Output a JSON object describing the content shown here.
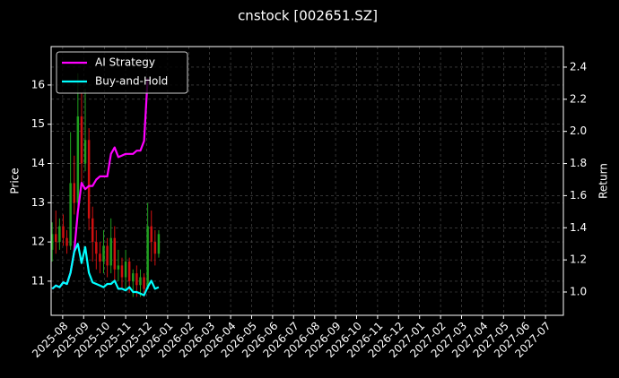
{
  "chart_data": {
    "type": "candlestick",
    "title": "cnstock [002651.SZ]",
    "ylabel": "Price",
    "y2label": "Return",
    "x": [
      -0.5,
      -0.325,
      -0.15,
      0.025,
      0.2,
      0.375,
      0.55,
      0.725,
      0.9,
      1.075,
      1.25,
      1.425,
      1.6,
      1.775,
      1.95,
      2.125,
      2.3,
      2.475,
      2.65,
      2.825,
      3.0,
      3.175,
      3.35,
      3.525,
      3.7,
      3.875,
      4.05,
      4.225,
      4.4,
      4.575
    ],
    "candles": {
      "open": [
        11.8,
        12.2,
        12.0,
        12.4,
        12.1,
        11.9,
        13.5,
        13.0,
        15.2,
        14.0,
        14.6,
        12.6,
        12.0,
        11.7,
        11.5,
        11.9,
        11.4,
        12.1,
        11.3,
        11.4,
        11.1,
        11.5,
        11.0,
        11.2,
        10.9,
        11.1,
        10.8,
        12.4,
        12.0,
        11.7
      ],
      "close": [
        12.2,
        12.0,
        12.4,
        12.1,
        11.9,
        13.5,
        13.0,
        15.2,
        14.0,
        14.6,
        12.6,
        12.0,
        11.7,
        11.5,
        11.9,
        11.4,
        12.1,
        11.3,
        11.4,
        11.1,
        11.5,
        11.0,
        11.2,
        10.9,
        11.1,
        10.8,
        12.4,
        12.0,
        11.7,
        12.2
      ],
      "high": [
        12.5,
        12.8,
        12.6,
        12.7,
        12.3,
        14.8,
        14.2,
        16.3,
        15.8,
        15.9,
        14.9,
        12.9,
        12.3,
        12.0,
        12.3,
        12.1,
        12.6,
        12.4,
        11.8,
        11.6,
        11.8,
        11.6,
        11.3,
        11.4,
        11.3,
        11.2,
        13.0,
        12.8,
        12.3,
        12.3
      ],
      "low": [
        11.5,
        11.7,
        11.8,
        11.9,
        11.7,
        11.8,
        12.7,
        12.9,
        13.5,
        13.8,
        12.3,
        11.5,
        11.3,
        11.2,
        11.2,
        11.1,
        11.2,
        11.0,
        11.0,
        10.8,
        10.8,
        10.7,
        10.6,
        10.6,
        10.6,
        10.6,
        10.8,
        11.5,
        11.4,
        11.6
      ],
      "up_color": "#1fa01f",
      "down_color": "#d01010"
    },
    "series": [
      {
        "name": "AI Strategy",
        "color": "#ff00ff",
        "axis": "y2",
        "values": [
          1.02,
          1.04,
          1.03,
          1.06,
          1.05,
          1.12,
          1.25,
          1.5,
          1.68,
          1.64,
          1.66,
          1.66,
          1.7,
          1.72,
          1.72,
          1.72,
          1.86,
          1.9,
          1.84,
          1.85,
          1.86,
          1.86,
          1.86,
          1.88,
          1.88,
          1.94,
          2.33,
          null,
          null,
          null
        ]
      },
      {
        "name": "Buy-and-Hold",
        "color": "#00ffff",
        "axis": "y2",
        "values": [
          1.02,
          1.04,
          1.03,
          1.06,
          1.05,
          1.12,
          1.25,
          1.3,
          1.18,
          1.28,
          1.12,
          1.06,
          1.05,
          1.04,
          1.03,
          1.05,
          1.05,
          1.07,
          1.02,
          1.02,
          1.01,
          1.03,
          1.0,
          1.0,
          0.99,
          0.98,
          1.03,
          1.07,
          1.02,
          1.03
        ]
      }
    ],
    "xlim": [
      -0.55,
      23.85
    ],
    "xticks": [
      {
        "value": 0,
        "label": "2025-08"
      },
      {
        "value": 1,
        "label": "2025-09"
      },
      {
        "value": 2,
        "label": "2025-10"
      },
      {
        "value": 3,
        "label": "2025-11"
      },
      {
        "value": 4,
        "label": "2025-12"
      },
      {
        "value": 5,
        "label": "2026-01"
      },
      {
        "value": 6,
        "label": "2026-02"
      },
      {
        "value": 7,
        "label": "2026-03"
      },
      {
        "value": 8,
        "label": "2026-04"
      },
      {
        "value": 9,
        "label": "2026-05"
      },
      {
        "value": 10,
        "label": "2026-06"
      },
      {
        "value": 11,
        "label": "2026-07"
      },
      {
        "value": 12,
        "label": "2026-08"
      },
      {
        "value": 13,
        "label": "2026-09"
      },
      {
        "value": 14,
        "label": "2026-10"
      },
      {
        "value": 15,
        "label": "2026-11"
      },
      {
        "value": 16,
        "label": "2026-12"
      },
      {
        "value": 17,
        "label": "2027-01"
      },
      {
        "value": 18,
        "label": "2027-02"
      },
      {
        "value": 19,
        "label": "2027-03"
      },
      {
        "value": 20,
        "label": "2027-04"
      },
      {
        "value": 21,
        "label": "2027-05"
      },
      {
        "value": 22,
        "label": "2027-06"
      },
      {
        "value": 23,
        "label": "2027-07"
      }
    ],
    "ylim": [
      10.13,
      16.98
    ],
    "yticks": [
      11,
      12,
      13,
      14,
      15,
      16
    ],
    "y2lim": [
      0.855,
      2.528
    ],
    "y2ticks": [
      {
        "value": 1,
        "label": "1.0"
      },
      1.2,
      1.4,
      1.6,
      1.8,
      {
        "value": 2,
        "label": "2.0"
      },
      2.2,
      2.4
    ],
    "grid": true,
    "legend": "upper left"
  }
}
